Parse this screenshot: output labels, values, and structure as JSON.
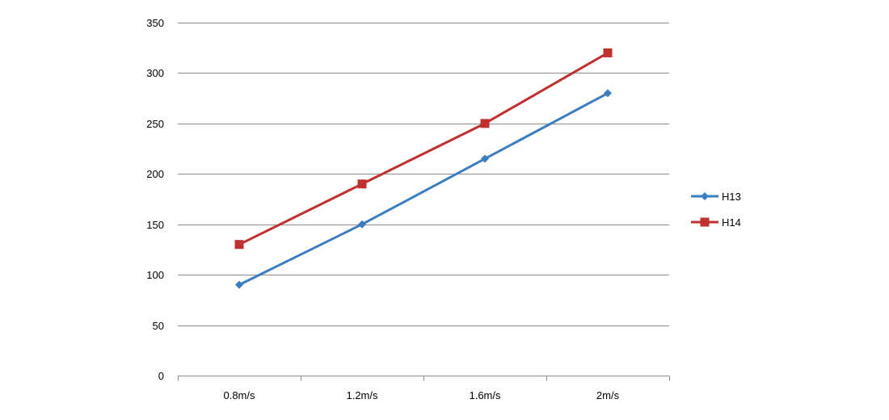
{
  "chart_data": {
    "type": "line",
    "title": "",
    "xlabel": "",
    "ylabel": "",
    "categories": [
      "0.8m/s",
      "1.2m/s",
      "1.6m/s",
      "2m/s"
    ],
    "ylim": [
      0,
      350
    ],
    "yticks": [
      0,
      50,
      100,
      150,
      200,
      250,
      300,
      350
    ],
    "grid": true,
    "legend_position": "right",
    "series": [
      {
        "name": "H13",
        "values": [
          90,
          150,
          215,
          280
        ],
        "color": "#3c7dbf",
        "marker": "diamond"
      },
      {
        "name": "H14",
        "values": [
          130,
          190,
          250,
          320
        ],
        "color": "#c0302f",
        "marker": "square"
      }
    ]
  }
}
